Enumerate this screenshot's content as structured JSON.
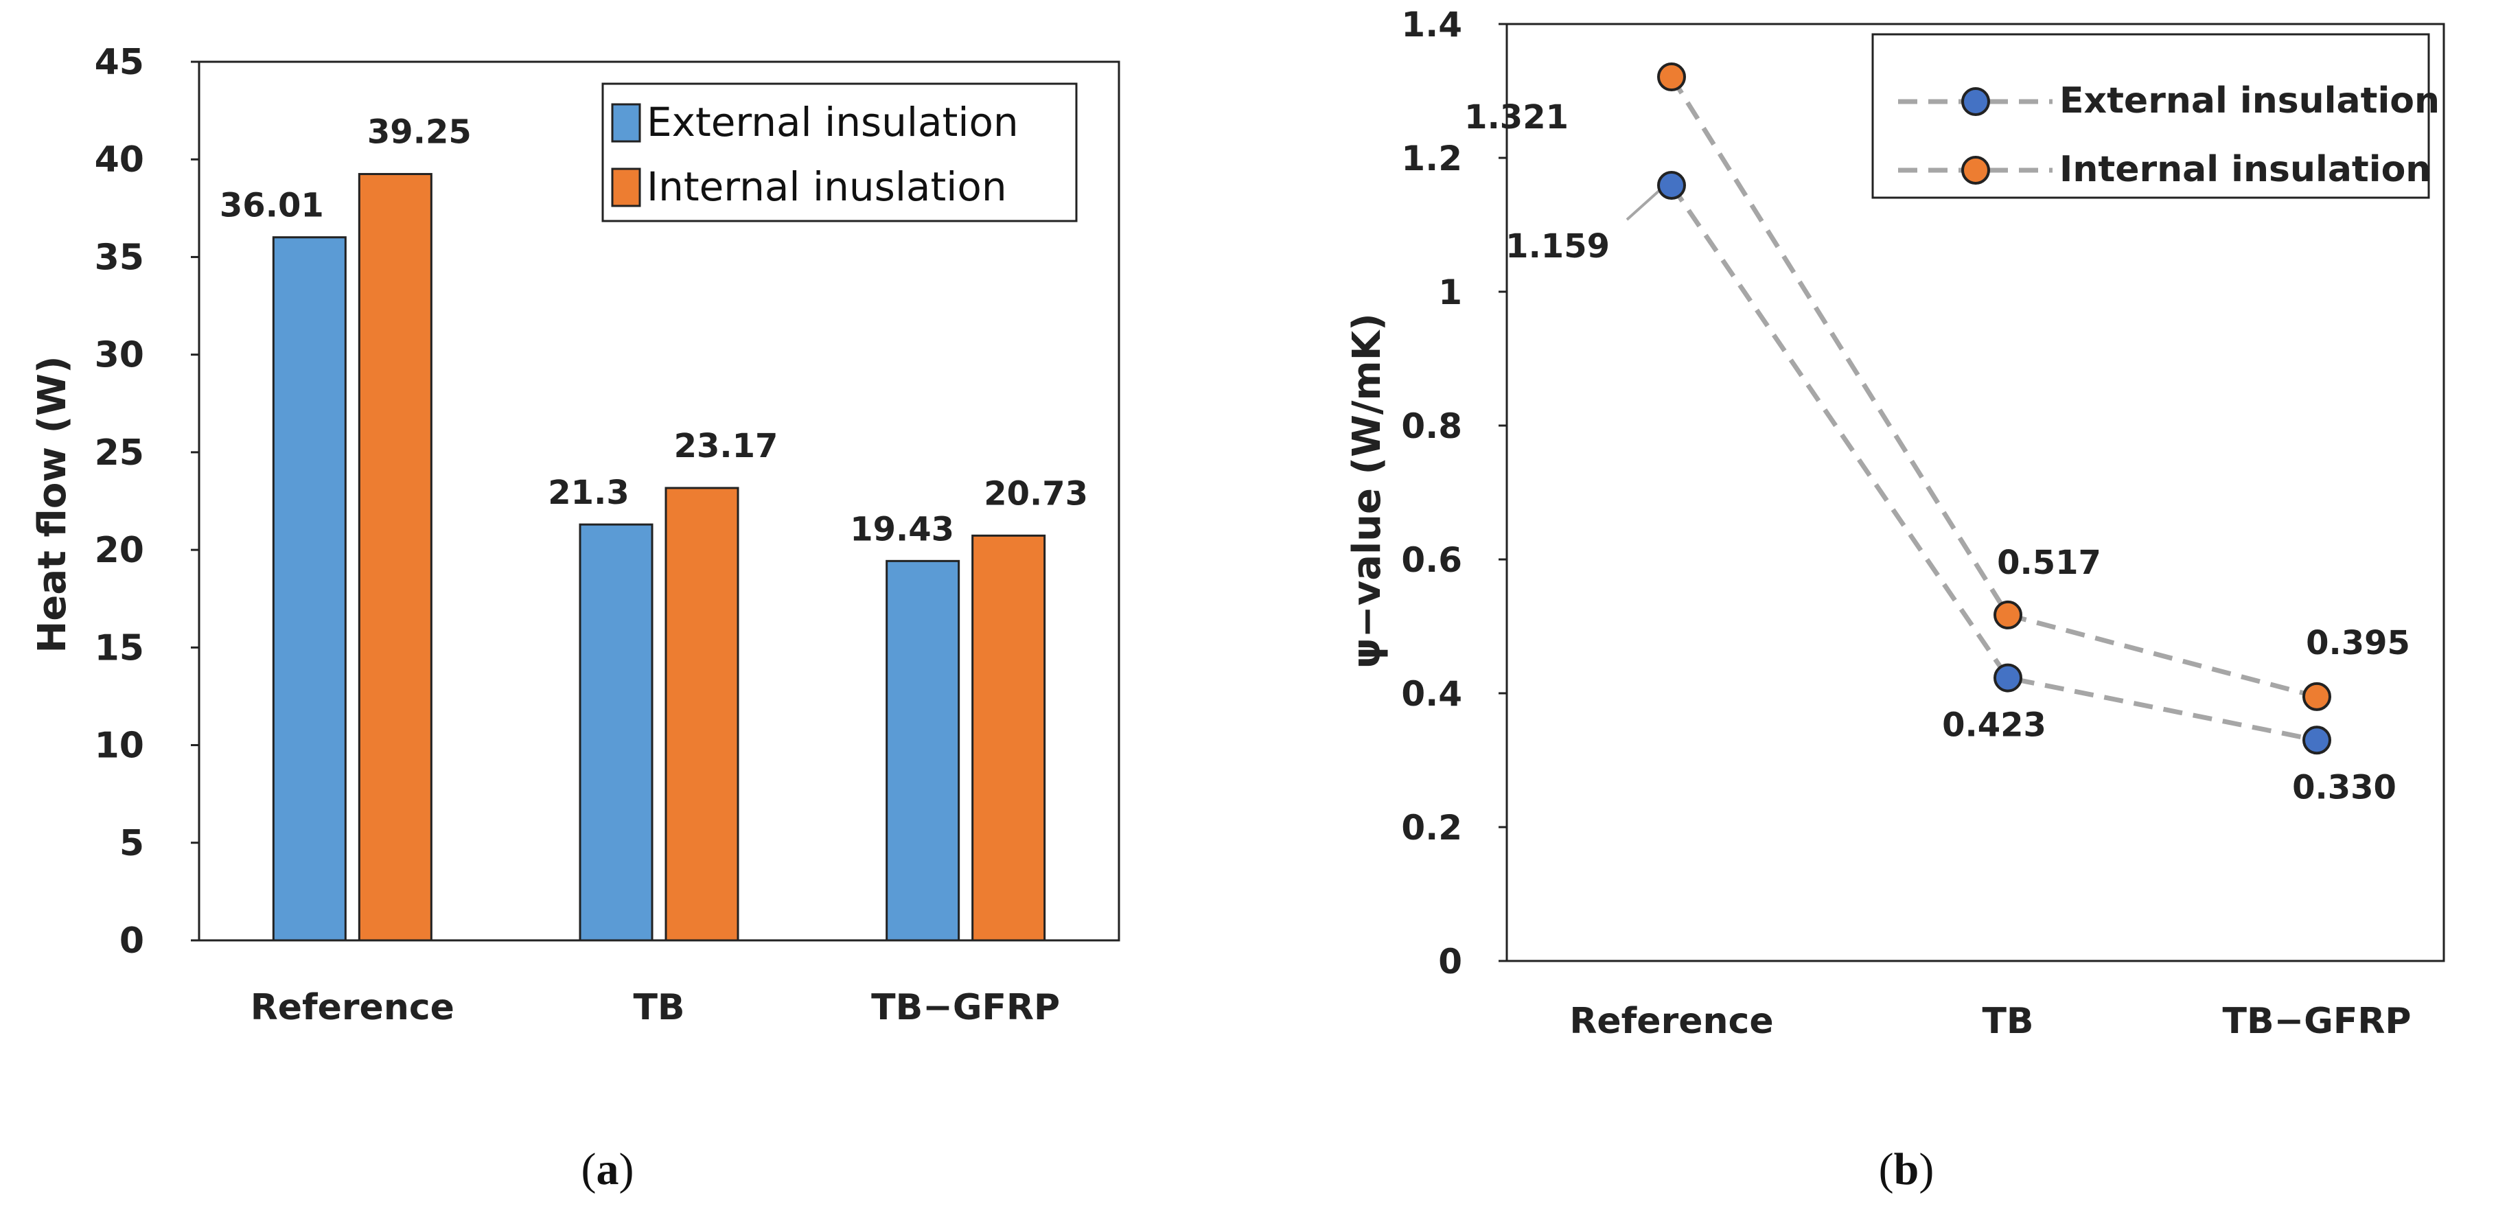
{
  "chart_data": [
    {
      "panel": "a",
      "type": "bar",
      "caption": "a",
      "categories": [
        "Reference",
        "TB",
        "TB−GFRP"
      ],
      "series": [
        {
          "name": "External insulation",
          "color": "#5b9bd5",
          "values": [
            36.01,
            21.3,
            19.43
          ],
          "labels": [
            "36.01",
            "21.3",
            "19.43"
          ]
        },
        {
          "name": "Internal inuslation",
          "color": "#ed7d31",
          "values": [
            39.25,
            23.17,
            20.73
          ],
          "labels": [
            "39.25",
            "23.17",
            "20.73"
          ]
        }
      ],
      "ylabel": "Heat flow (W)",
      "ylim": [
        0,
        45
      ],
      "yticks": [
        "0",
        "5",
        "10",
        "15",
        "20",
        "25",
        "30",
        "35",
        "40",
        "45"
      ],
      "legend": "top-right"
    },
    {
      "panel": "b",
      "type": "line",
      "caption": "b",
      "categories": [
        "Reference",
        "TB",
        "TB−GFRP"
      ],
      "series": [
        {
          "name": "External insulation",
          "color": "#4472c4",
          "values": [
            1.159,
            0.423,
            0.33
          ],
          "labels": [
            "1.159",
            "0.423",
            "0.330"
          ]
        },
        {
          "name": "Internal insulation",
          "color": "#ed7d31",
          "values": [
            1.321,
            0.517,
            0.395
          ],
          "labels": [
            "1.321",
            "0.517",
            "0.395"
          ]
        }
      ],
      "line_color": "#a6a6a6",
      "line_style": "dashed",
      "ylabel": "ψ−value (W/mK)",
      "ylim": [
        0,
        1.4
      ],
      "yticks": [
        "0",
        "0.2",
        "0.4",
        "0.6",
        "0.8",
        "1",
        "1.2",
        "1.4"
      ],
      "legend": "top-right"
    }
  ]
}
